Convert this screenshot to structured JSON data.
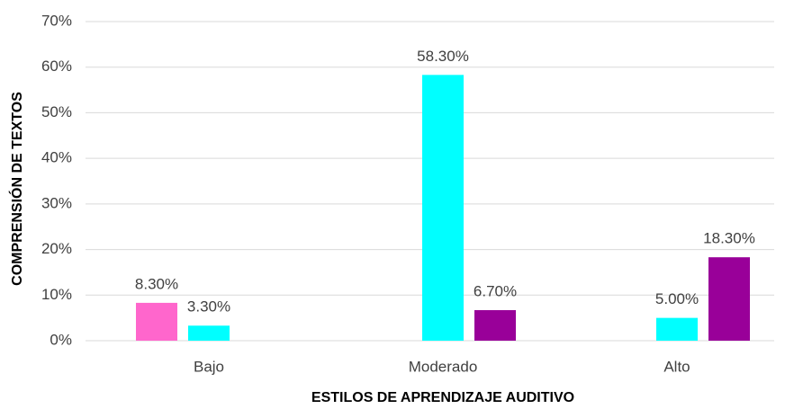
{
  "chart_data": {
    "type": "bar",
    "x_label": "ESTILOS DE APRENDIZAJE AUDITIVO",
    "y_label": "COMPRENSIÓN DE TEXTOS",
    "categories": [
      "Bajo",
      "Moderado",
      "Alto"
    ],
    "series": [
      {
        "color": "#ff66cc",
        "values": [
          8.3,
          null,
          null
        ],
        "value_labels": [
          "8.30%",
          null,
          null
        ]
      },
      {
        "color": "#00ffff",
        "values": [
          3.3,
          58.3,
          5.0
        ],
        "value_labels": [
          "3.30%",
          "58.30%",
          "5.00%"
        ]
      },
      {
        "color": "#990099",
        "values": [
          null,
          6.7,
          18.3
        ],
        "value_labels": [
          null,
          "6.70%",
          "18.30%"
        ]
      }
    ],
    "ylim": [
      0,
      70
    ],
    "yticks": [
      {
        "value": 0,
        "label": "0%"
      },
      {
        "value": 10,
        "label": "10%"
      },
      {
        "value": 20,
        "label": "20%"
      },
      {
        "value": 30,
        "label": "30%"
      },
      {
        "value": 40,
        "label": "40%"
      },
      {
        "value": 50,
        "label": "50%"
      },
      {
        "value": 60,
        "label": "60%"
      },
      {
        "value": 70,
        "label": "70%"
      }
    ],
    "grid": true
  }
}
